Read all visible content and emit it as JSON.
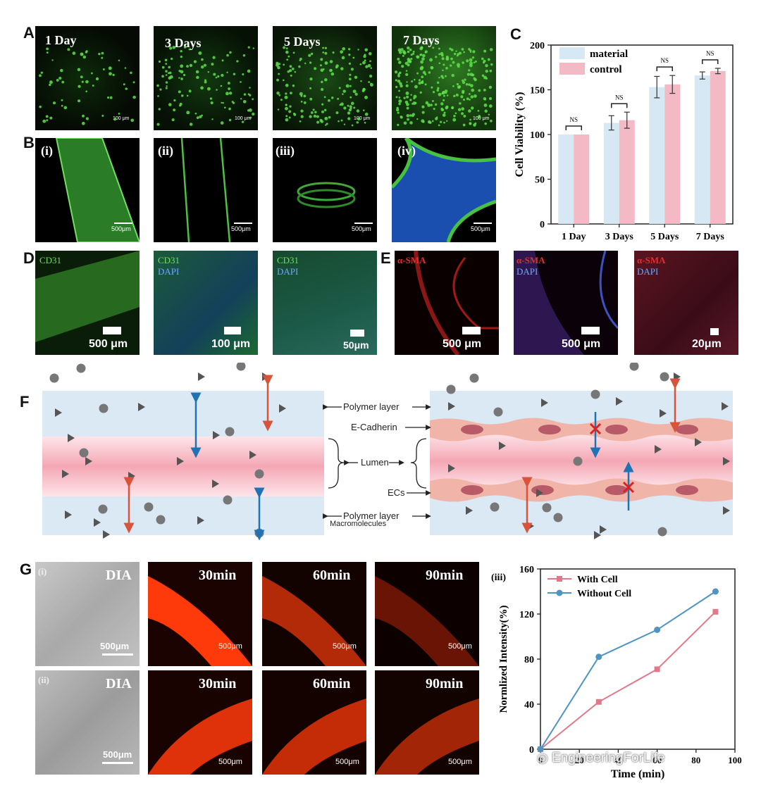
{
  "panel_letters": {
    "A": "A",
    "B": "B",
    "C": "C",
    "D": "D",
    "E": "E",
    "F": "F",
    "G": "G"
  },
  "panel_a": {
    "labels": [
      "1 Day",
      "3 Days",
      "5 Days",
      "7 Days"
    ],
    "scale": "100 μm"
  },
  "panel_b": {
    "labels": [
      "(i)",
      "(ii)",
      "(iii)",
      "(iv)"
    ],
    "scale": "500μm"
  },
  "panel_d": {
    "labels": [
      [
        "CD31"
      ],
      [
        "CD31",
        "DAPI"
      ],
      [
        "CD31",
        "DAPI"
      ]
    ],
    "scales": [
      "500 μm",
      "100 μm",
      "50μm"
    ]
  },
  "panel_e": {
    "labels": [
      [
        "α-SMA"
      ],
      [
        "α-SMA",
        "DAPI"
      ],
      [
        "α-SMA",
        "DAPI"
      ]
    ],
    "scales": [
      "500 μm",
      "500 μm",
      "20μm"
    ]
  },
  "panel_f": {
    "labels": {
      "polymer_top": "Polymer layer",
      "e_cadherin": "E-Cadherin",
      "lumen": "Lumen",
      "ecs": "ECs",
      "polymer_bottom": "Polymer layer",
      "macromolecules": "Macromolecules"
    }
  },
  "panel_g": {
    "row_labels": [
      "(i)",
      "(ii)"
    ],
    "dia": "DIA",
    "times": [
      "30min",
      "60min",
      "90min"
    ],
    "scale": "500μm",
    "chart_label": "(iii)"
  },
  "colors": {
    "material": "#d5e8f3",
    "control": "#f3b9c4",
    "with_cell": "#e07a8a",
    "without_cell": "#4f95bf",
    "arrow_red": "#d9533b",
    "arrow_blue": "#1f73b5"
  },
  "watermark": "EngineeringForLife",
  "chart_data": [
    {
      "type": "bar",
      "title": "",
      "xlabel": "",
      "ylabel": "Cell Viability (%)",
      "categories": [
        "1 Day",
        "3 Days",
        "5 Days",
        "7 Days"
      ],
      "series": [
        {
          "name": "material",
          "values": [
            100,
            113,
            153,
            166
          ],
          "errors": [
            0,
            8,
            12,
            4
          ]
        },
        {
          "name": "control",
          "values": [
            100,
            116,
            156,
            171
          ],
          "errors": [
            0,
            9,
            10,
            3
          ]
        }
      ],
      "significance": [
        "NS",
        "NS",
        "NS",
        "NS"
      ],
      "ylim": [
        0,
        200
      ],
      "yticks": [
        0,
        50,
        100,
        150,
        200
      ],
      "legend": "top-left"
    },
    {
      "type": "line",
      "title": "",
      "xlabel": "Time (min)",
      "ylabel": "Normlized Intensity(%)",
      "x": [
        0,
        30,
        60,
        90
      ],
      "series": [
        {
          "name": "With Cell",
          "values": [
            0,
            42,
            71,
            122
          ]
        },
        {
          "name": "Without Cell",
          "values": [
            0,
            82,
            106,
            140
          ]
        }
      ],
      "xlim": [
        0,
        100
      ],
      "ylim": [
        0,
        160
      ],
      "xticks": [
        0,
        20,
        40,
        60,
        80,
        100
      ],
      "yticks": [
        0,
        40,
        80,
        120,
        160
      ],
      "legend": "top-left"
    }
  ]
}
